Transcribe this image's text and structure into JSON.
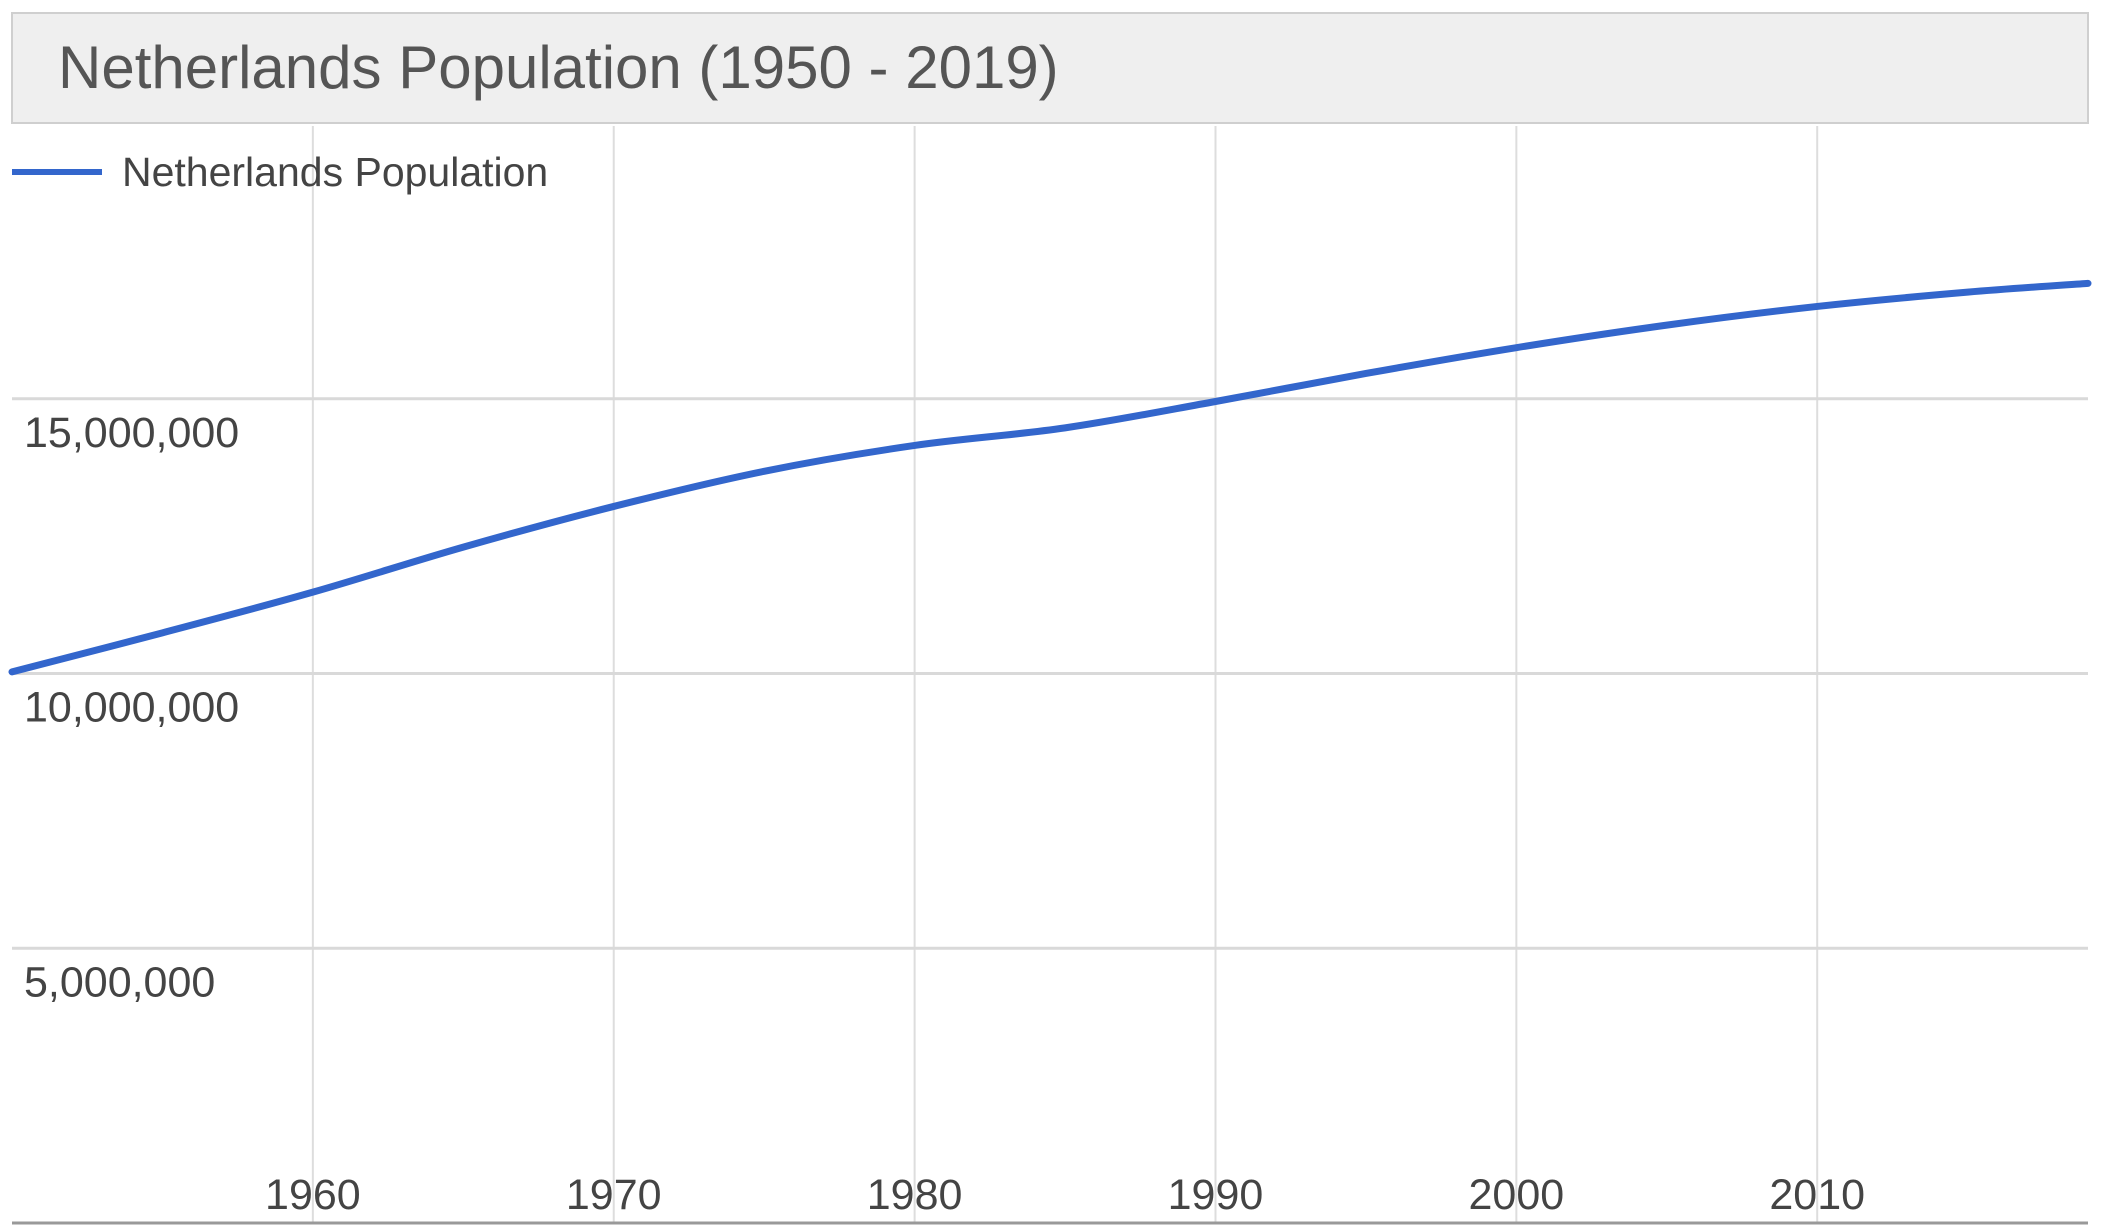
{
  "chart_data": {
    "type": "line",
    "title": "Netherlands Population (1950 - 2019)",
    "xlabel": "",
    "ylabel": "",
    "xlim": [
      1950,
      2019
    ],
    "ylim": [
      0,
      20000000
    ],
    "x_ticks": [
      1960,
      1970,
      1980,
      1990,
      2000,
      2010
    ],
    "x_tick_labels": [
      "1960",
      "1970",
      "1980",
      "1990",
      "2000",
      "2010"
    ],
    "y_ticks": [
      5000000,
      10000000,
      15000000
    ],
    "y_tick_labels": [
      "5,000,000",
      "10,000,000",
      "15,000,000"
    ],
    "grid": true,
    "legend_position": "top-left",
    "colors": {
      "series": "#3366cc",
      "title_bar": "#efefef",
      "title_text": "#555555",
      "grid": "#dddddd",
      "axis_text": "#444444"
    },
    "series": [
      {
        "name": "Netherlands Population",
        "x": [
          1950,
          1955,
          1960,
          1965,
          1970,
          1975,
          1980,
          1985,
          1990,
          1995,
          2000,
          2005,
          2010,
          2015,
          2019
        ],
        "values": [
          10030000,
          10740000,
          11480000,
          12300000,
          13040000,
          13680000,
          14150000,
          14470000,
          14950000,
          15460000,
          15930000,
          16340000,
          16680000,
          16940000,
          17100000
        ]
      }
    ]
  }
}
